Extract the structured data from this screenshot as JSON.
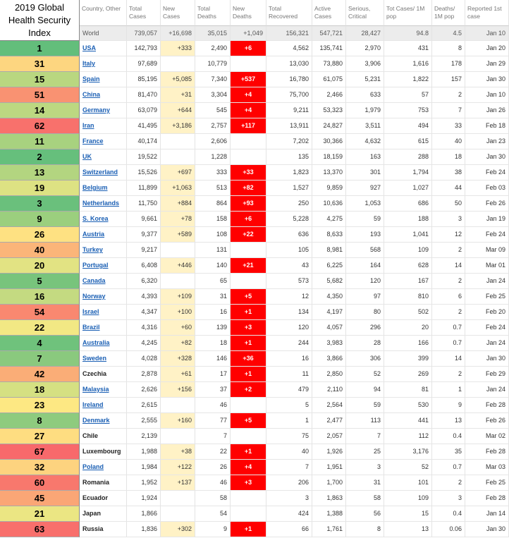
{
  "ghs_header": "2019 Global Health Security Index",
  "ghs": [
    {
      "rank": 1,
      "color": "#63be7b"
    },
    {
      "rank": 31,
      "color": "#fdd680"
    },
    {
      "rank": 15,
      "color": "#b9d780"
    },
    {
      "rank": 51,
      "color": "#f99272"
    },
    {
      "rank": 14,
      "color": "#bcd881"
    },
    {
      "rank": 62,
      "color": "#f8716c"
    },
    {
      "rank": 11,
      "color": "#a8d27f"
    },
    {
      "rank": 2,
      "color": "#66bf7c"
    },
    {
      "rank": 13,
      "color": "#b3d580"
    },
    {
      "rank": 19,
      "color": "#dde283"
    },
    {
      "rank": 3,
      "color": "#6ac07c"
    },
    {
      "rank": 9,
      "color": "#9bcf7e"
    },
    {
      "rank": 26,
      "color": "#fee182"
    },
    {
      "rank": 40,
      "color": "#fbb579"
    },
    {
      "rank": 20,
      "color": "#e2e383"
    },
    {
      "rank": 5,
      "color": "#78c47c"
    },
    {
      "rank": 16,
      "color": "#c4da81"
    },
    {
      "rank": 54,
      "color": "#f98870"
    },
    {
      "rank": 22,
      "color": "#f2e884"
    },
    {
      "rank": 4,
      "color": "#6fc27c"
    },
    {
      "rank": 7,
      "color": "#8ac97e"
    },
    {
      "rank": 42,
      "color": "#faad77"
    },
    {
      "rank": 18,
      "color": "#d5e082"
    },
    {
      "rank": 23,
      "color": "#fde883"
    },
    {
      "rank": 8,
      "color": "#8ecb7e"
    },
    {
      "rank": 27,
      "color": "#fedd81"
    },
    {
      "rank": 67,
      "color": "#f8696b"
    },
    {
      "rank": 32,
      "color": "#fdd37f"
    },
    {
      "rank": 60,
      "color": "#f8786d"
    },
    {
      "rank": 45,
      "color": "#faa676"
    },
    {
      "rank": 21,
      "color": "#ebe683"
    },
    {
      "rank": 63,
      "color": "#f86f6c"
    }
  ],
  "table": {
    "columns": [
      "Country, Other",
      "Total Cases",
      "New Cases",
      "Total Deaths",
      "New Deaths",
      "Total Recovered",
      "Active Cases",
      "Serious, Critical",
      "Tot Cases/ 1M pop",
      "Deaths/ 1M pop",
      "Reported 1st case"
    ],
    "world": [
      "World",
      "739,057",
      "+16,698",
      "35,015",
      "+1,049",
      "156,321",
      "547,721",
      "28,427",
      "94.8",
      "4.5",
      "Jan 10"
    ],
    "rows": [
      [
        "USA",
        "142,793",
        "+333",
        "2,490",
        "+6",
        "4,562",
        "135,741",
        "2,970",
        "431",
        "8",
        "Jan 20"
      ],
      [
        "Italy",
        "97,689",
        null,
        "10,779",
        null,
        "13,030",
        "73,880",
        "3,906",
        "1,616",
        "178",
        "Jan 29"
      ],
      [
        "Spain",
        "85,195",
        "+5,085",
        "7,340",
        "+537",
        "16,780",
        "61,075",
        "5,231",
        "1,822",
        "157",
        "Jan 30"
      ],
      [
        "China",
        "81,470",
        "+31",
        "3,304",
        "+4",
        "75,700",
        "2,466",
        "633",
        "57",
        "2",
        "Jan 10"
      ],
      [
        "Germany",
        "63,079",
        "+644",
        "545",
        "+4",
        "9,211",
        "53,323",
        "1,979",
        "753",
        "7",
        "Jan 26"
      ],
      [
        "Iran",
        "41,495",
        "+3,186",
        "2,757",
        "+117",
        "13,911",
        "24,827",
        "3,511",
        "494",
        "33",
        "Feb 18"
      ],
      [
        "France",
        "40,174",
        null,
        "2,606",
        null,
        "7,202",
        "30,366",
        "4,632",
        "615",
        "40",
        "Jan 23"
      ],
      [
        "UK",
        "19,522",
        null,
        "1,228",
        null,
        "135",
        "18,159",
        "163",
        "288",
        "18",
        "Jan 30"
      ],
      [
        "Switzerland",
        "15,526",
        "+697",
        "333",
        "+33",
        "1,823",
        "13,370",
        "301",
        "1,794",
        "38",
        "Feb 24"
      ],
      [
        "Belgium",
        "11,899",
        "+1,063",
        "513",
        "+82",
        "1,527",
        "9,859",
        "927",
        "1,027",
        "44",
        "Feb 03"
      ],
      [
        "Netherlands",
        "11,750",
        "+884",
        "864",
        "+93",
        "250",
        "10,636",
        "1,053",
        "686",
        "50",
        "Feb 26"
      ],
      [
        "S. Korea",
        "9,661",
        "+78",
        "158",
        "+6",
        "5,228",
        "4,275",
        "59",
        "188",
        "3",
        "Jan 19"
      ],
      [
        "Austria",
        "9,377",
        "+589",
        "108",
        "+22",
        "636",
        "8,633",
        "193",
        "1,041",
        "12",
        "Feb 24"
      ],
      [
        "Turkey",
        "9,217",
        null,
        "131",
        null,
        "105",
        "8,981",
        "568",
        "109",
        "2",
        "Mar 09"
      ],
      [
        "Portugal",
        "6,408",
        "+446",
        "140",
        "+21",
        "43",
        "6,225",
        "164",
        "628",
        "14",
        "Mar 01"
      ],
      [
        "Canada",
        "6,320",
        null,
        "65",
        null,
        "573",
        "5,682",
        "120",
        "167",
        "2",
        "Jan 24"
      ],
      [
        "Norway",
        "4,393",
        "+109",
        "31",
        "+5",
        "12",
        "4,350",
        "97",
        "810",
        "6",
        "Feb 25"
      ],
      [
        "Israel",
        "4,347",
        "+100",
        "16",
        "+1",
        "134",
        "4,197",
        "80",
        "502",
        "2",
        "Feb 20"
      ],
      [
        "Brazil",
        "4,316",
        "+60",
        "139",
        "+3",
        "120",
        "4,057",
        "296",
        "20",
        "0.7",
        "Feb 24"
      ],
      [
        "Australia",
        "4,245",
        "+82",
        "18",
        "+1",
        "244",
        "3,983",
        "28",
        "166",
        "0.7",
        "Jan 24"
      ],
      [
        "Sweden",
        "4,028",
        "+328",
        "146",
        "+36",
        "16",
        "3,866",
        "306",
        "399",
        "14",
        "Jan 30"
      ],
      [
        "Czechia",
        "2,878",
        "+61",
        "17",
        "+1",
        "11",
        "2,850",
        "52",
        "269",
        "2",
        "Feb 29"
      ],
      [
        "Malaysia",
        "2,626",
        "+156",
        "37",
        "+2",
        "479",
        "2,110",
        "94",
        "81",
        "1",
        "Jan 24"
      ],
      [
        "Ireland",
        "2,615",
        null,
        "46",
        null,
        "5",
        "2,564",
        "59",
        "530",
        "9",
        "Feb 28"
      ],
      [
        "Denmark",
        "2,555",
        "+160",
        "77",
        "+5",
        "1",
        "2,477",
        "113",
        "441",
        "13",
        "Feb 26"
      ],
      [
        "Chile",
        "2,139",
        null,
        "7",
        null,
        "75",
        "2,057",
        "7",
        "112",
        "0.4",
        "Mar 02"
      ],
      [
        "Luxembourg",
        "1,988",
        "+38",
        "22",
        "+1",
        "40",
        "1,926",
        "25",
        "3,176",
        "35",
        "Feb 28"
      ],
      [
        "Poland",
        "1,984",
        "+122",
        "26",
        "+4",
        "7",
        "1,951",
        "3",
        "52",
        "0.7",
        "Mar 03"
      ],
      [
        "Romania",
        "1,952",
        "+137",
        "46",
        "+3",
        "206",
        "1,700",
        "31",
        "101",
        "2",
        "Feb 25"
      ],
      [
        "Ecuador",
        "1,924",
        null,
        "58",
        null,
        "3",
        "1,863",
        "58",
        "109",
        "3",
        "Feb 28"
      ],
      [
        "Japan",
        "1,866",
        null,
        "54",
        null,
        "424",
        "1,388",
        "56",
        "15",
        "0.4",
        "Jan 14"
      ],
      [
        "Russia",
        "1,836",
        "+302",
        "9",
        "+1",
        "66",
        "1,761",
        "8",
        "13",
        "0.06",
        "Jan 30"
      ]
    ],
    "linked": [
      true,
      true,
      true,
      true,
      true,
      true,
      true,
      true,
      true,
      true,
      true,
      true,
      true,
      true,
      true,
      true,
      true,
      true,
      true,
      true,
      true,
      false,
      true,
      true,
      true,
      false,
      false,
      true,
      false,
      false,
      false,
      false
    ]
  }
}
